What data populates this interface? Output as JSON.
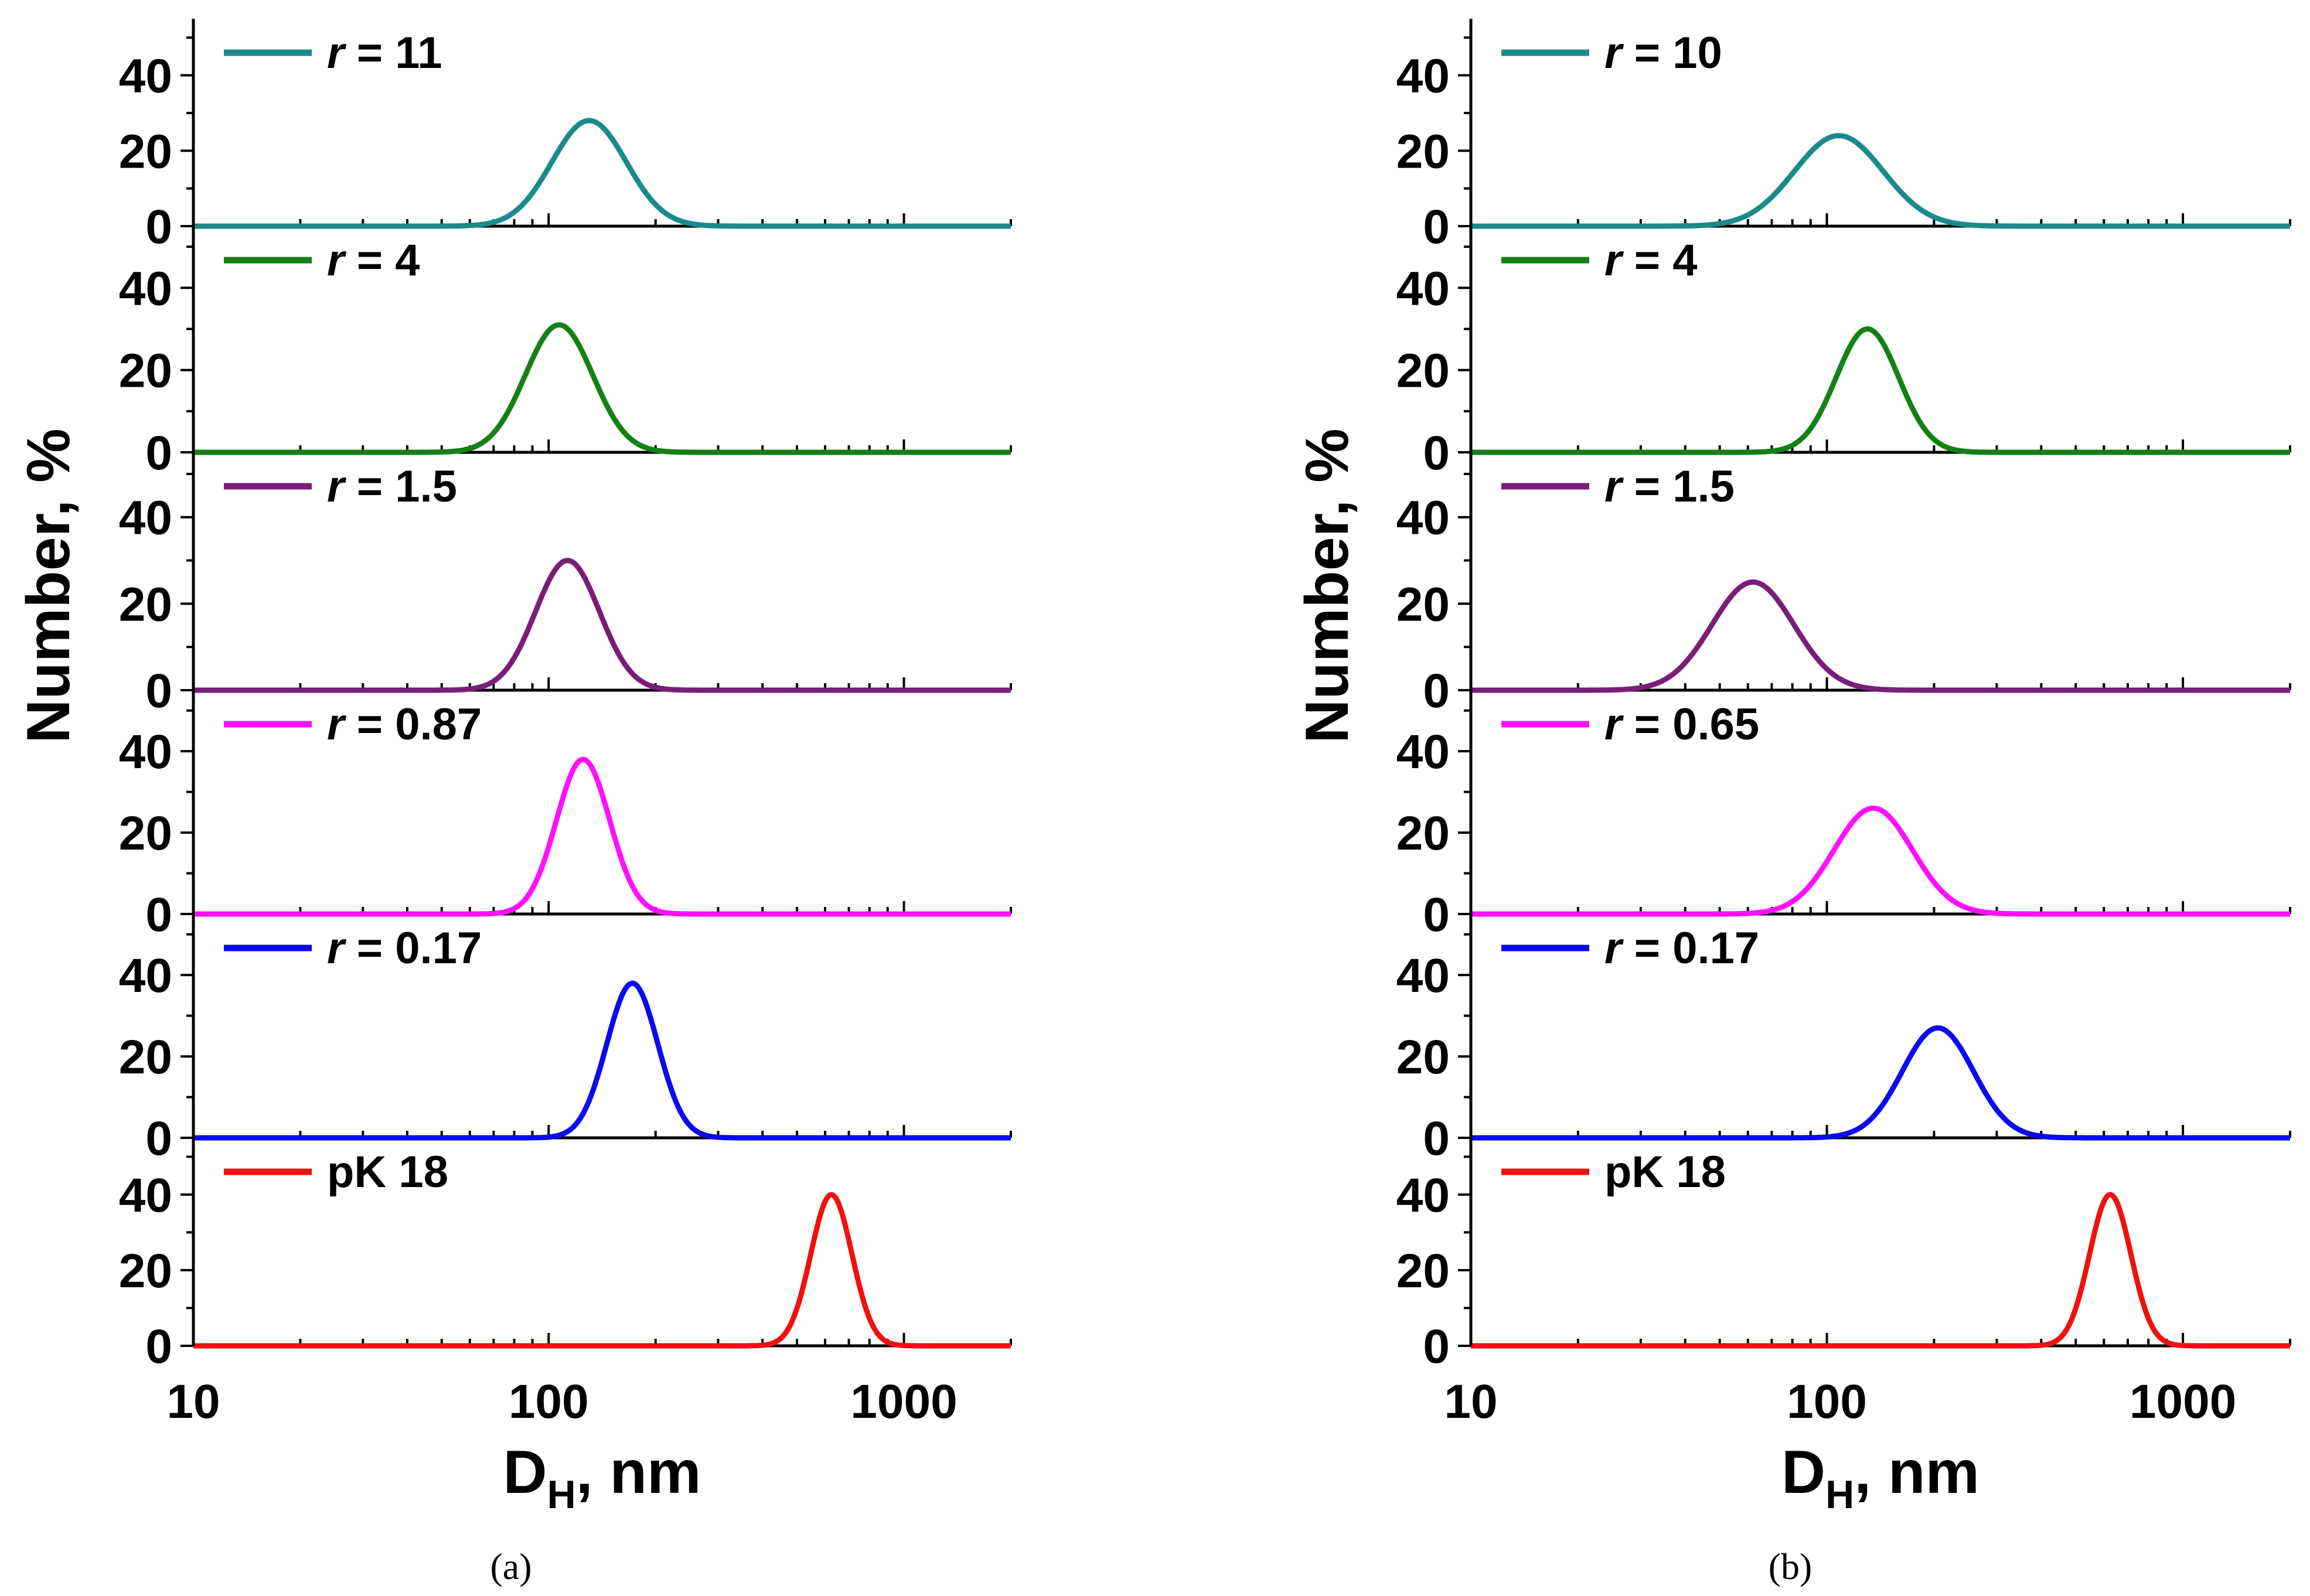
{
  "chart_data": [
    {
      "type": "line",
      "panel_label": "(a)",
      "xlabel": "DH, nm",
      "xlabel_main": "D",
      "xlabel_sub": "H",
      "xlabel_rest": ", nm",
      "ylabel": "Number, %",
      "x_scale": "log",
      "xlim": [
        10,
        2000
      ],
      "ylim": [
        0,
        55
      ],
      "x_ticks": [
        10,
        100,
        1000
      ],
      "x_tick_labels": [
        "10",
        "100",
        "1000"
      ],
      "y_ticks": [
        0,
        20,
        40
      ],
      "y_tick_labels": [
        "0",
        "20",
        "40"
      ],
      "grid": false,
      "legend_position": "top-left",
      "series": [
        {
          "name": "r = 11",
          "legend_italic": "r",
          "legend_rest": " = 11",
          "color": "#1a8a8c",
          "peak_x": 130,
          "peak_y": 28,
          "width": 0.105
        },
        {
          "name": "r = 4",
          "legend_italic": "r",
          "legend_rest": " = 4",
          "color": "#158015",
          "peak_x": 107,
          "peak_y": 31,
          "width": 0.095
        },
        {
          "name": "r = 1.5",
          "legend_italic": "r",
          "legend_rest": " = 1.5",
          "color": "#781e78",
          "peak_x": 113,
          "peak_y": 30,
          "width": 0.09
        },
        {
          "name": "r = 0.87",
          "legend_italic": "r",
          "legend_rest": " = 0.87",
          "color": "#ff10ff",
          "peak_x": 125,
          "peak_y": 38,
          "width": 0.075
        },
        {
          "name": "r = 0.17",
          "legend_italic": "r",
          "legend_rest": " = 0.17",
          "color": "#0a0af0",
          "peak_x": 172,
          "peak_y": 38,
          "width": 0.072
        },
        {
          "name": "pK 18",
          "legend_italic": "",
          "legend_rest": "pK 18",
          "color": "#f01010",
          "peak_x": 625,
          "peak_y": 40,
          "width": 0.058
        }
      ]
    },
    {
      "type": "line",
      "panel_label": "(b)",
      "xlabel": "DH, nm",
      "xlabel_main": "D",
      "xlabel_sub": "H",
      "xlabel_rest": ", nm",
      "ylabel": "Number, %",
      "x_scale": "log",
      "xlim": [
        10,
        2000
      ],
      "ylim": [
        0,
        55
      ],
      "x_ticks": [
        10,
        100,
        1000
      ],
      "x_tick_labels": [
        "10",
        "100",
        "1000"
      ],
      "y_ticks": [
        0,
        20,
        40
      ],
      "y_tick_labels": [
        "0",
        "20",
        "40"
      ],
      "grid": false,
      "legend_position": "top-left",
      "series": [
        {
          "name": "r = 10",
          "legend_italic": "r",
          "legend_rest": " = 10",
          "color": "#1a8a8c",
          "peak_x": 108,
          "peak_y": 24,
          "width": 0.125
        },
        {
          "name": "r = 4",
          "legend_italic": "r",
          "legend_rest": " = 4",
          "color": "#158015",
          "peak_x": 130,
          "peak_y": 30,
          "width": 0.088
        },
        {
          "name": "r = 1.5",
          "legend_italic": "r",
          "legend_rest": " = 1.5",
          "color": "#781e78",
          "peak_x": 62,
          "peak_y": 25,
          "width": 0.115
        },
        {
          "name": "r = 0.65",
          "legend_italic": "r",
          "legend_rest": " = 0.65",
          "color": "#ff10ff",
          "peak_x": 135,
          "peak_y": 26,
          "width": 0.11
        },
        {
          "name": "r = 0.17",
          "legend_italic": "r",
          "legend_rest": " = 0.17",
          "color": "#0a0af0",
          "peak_x": 205,
          "peak_y": 27,
          "width": 0.1
        },
        {
          "name": "pK 18",
          "legend_italic": "",
          "legend_rest": "pK 18",
          "color": "#f01010",
          "peak_x": 625,
          "peak_y": 40,
          "width": 0.058
        }
      ]
    }
  ]
}
